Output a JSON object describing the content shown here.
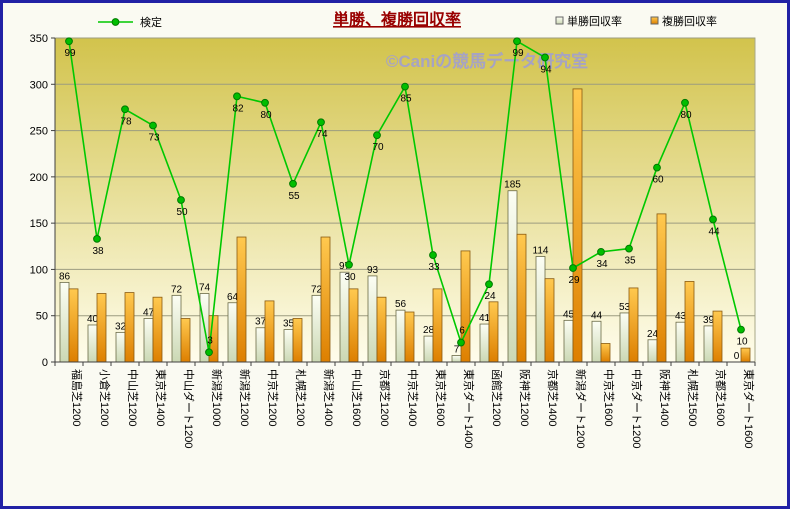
{
  "frame": {
    "border_color": "#2121A5",
    "background": "#FAFAF2"
  },
  "title": {
    "text": "単勝、複勝回収率",
    "color": "#990000"
  },
  "watermark": {
    "text": "©Caniの競馬データ研究室",
    "color": "#9A9ADF"
  },
  "legend": {
    "kentei_label": "検定",
    "tansho_label": "単勝回収率",
    "fukusho_label": "複勝回収率"
  },
  "chart_data": {
    "type": "bar",
    "title": "単勝、複勝回収率",
    "categories": [
      "福島芝1200",
      "小倉芝1200",
      "中山芝1200",
      "東京芝1400",
      "中山ダート1200",
      "新潟芝1000",
      "新潟芝1200",
      "中京芝1200",
      "札幌芝1200",
      "新潟芝1400",
      "中山芝1600",
      "京都芝1200",
      "中京芝1400",
      "東京芝1600",
      "東京ダート1400",
      "函館芝1200",
      "阪神芝1200",
      "京都芝1400",
      "新潟ダート1200",
      "中京芝1600",
      "中京ダート1200",
      "阪神芝1400",
      "札幌芝1500",
      "京都芝1600",
      "東京ダート1600"
    ],
    "series": [
      {
        "name": "単勝回収率",
        "type": "bar",
        "color_top": "#FCFEF4",
        "color_bottom": "#CBD8B4",
        "labels_shown": true,
        "values": [
          86,
          40,
          32,
          47,
          72,
          74,
          64,
          37,
          35,
          72,
          97,
          93,
          56,
          28,
          7,
          41,
          185,
          114,
          45,
          44,
          53,
          24,
          43,
          39,
          0
        ]
      },
      {
        "name": "複勝回収率",
        "type": "bar",
        "color_top": "#FFC94F",
        "color_bottom": "#DD7F00",
        "labels_shown": false,
        "values": [
          79,
          74,
          75,
          70,
          47,
          50,
          135,
          66,
          47,
          135,
          79,
          70,
          54,
          79,
          120,
          65,
          138,
          90,
          295,
          20,
          80,
          160,
          87,
          55,
          15
        ]
      },
      {
        "name": "検定",
        "type": "line",
        "color": "#00C800",
        "axis": "secondary",
        "secondary_max": 100,
        "labels_shown": true,
        "values": [
          99,
          38,
          78,
          73,
          50,
          3,
          82,
          80,
          55,
          74,
          30,
          70,
          85,
          33,
          6,
          24,
          99,
          94,
          29,
          34,
          35,
          60,
          80,
          44,
          10
        ]
      }
    ],
    "ylim": [
      0,
      350
    ],
    "ytick": 50,
    "y_ticks": [
      0,
      50,
      100,
      150,
      200,
      250,
      300,
      350
    ],
    "grid": true,
    "legend_position": "top",
    "plot_background_top": "#D2C34C",
    "plot_background_bottom": "#FFFDEC"
  }
}
